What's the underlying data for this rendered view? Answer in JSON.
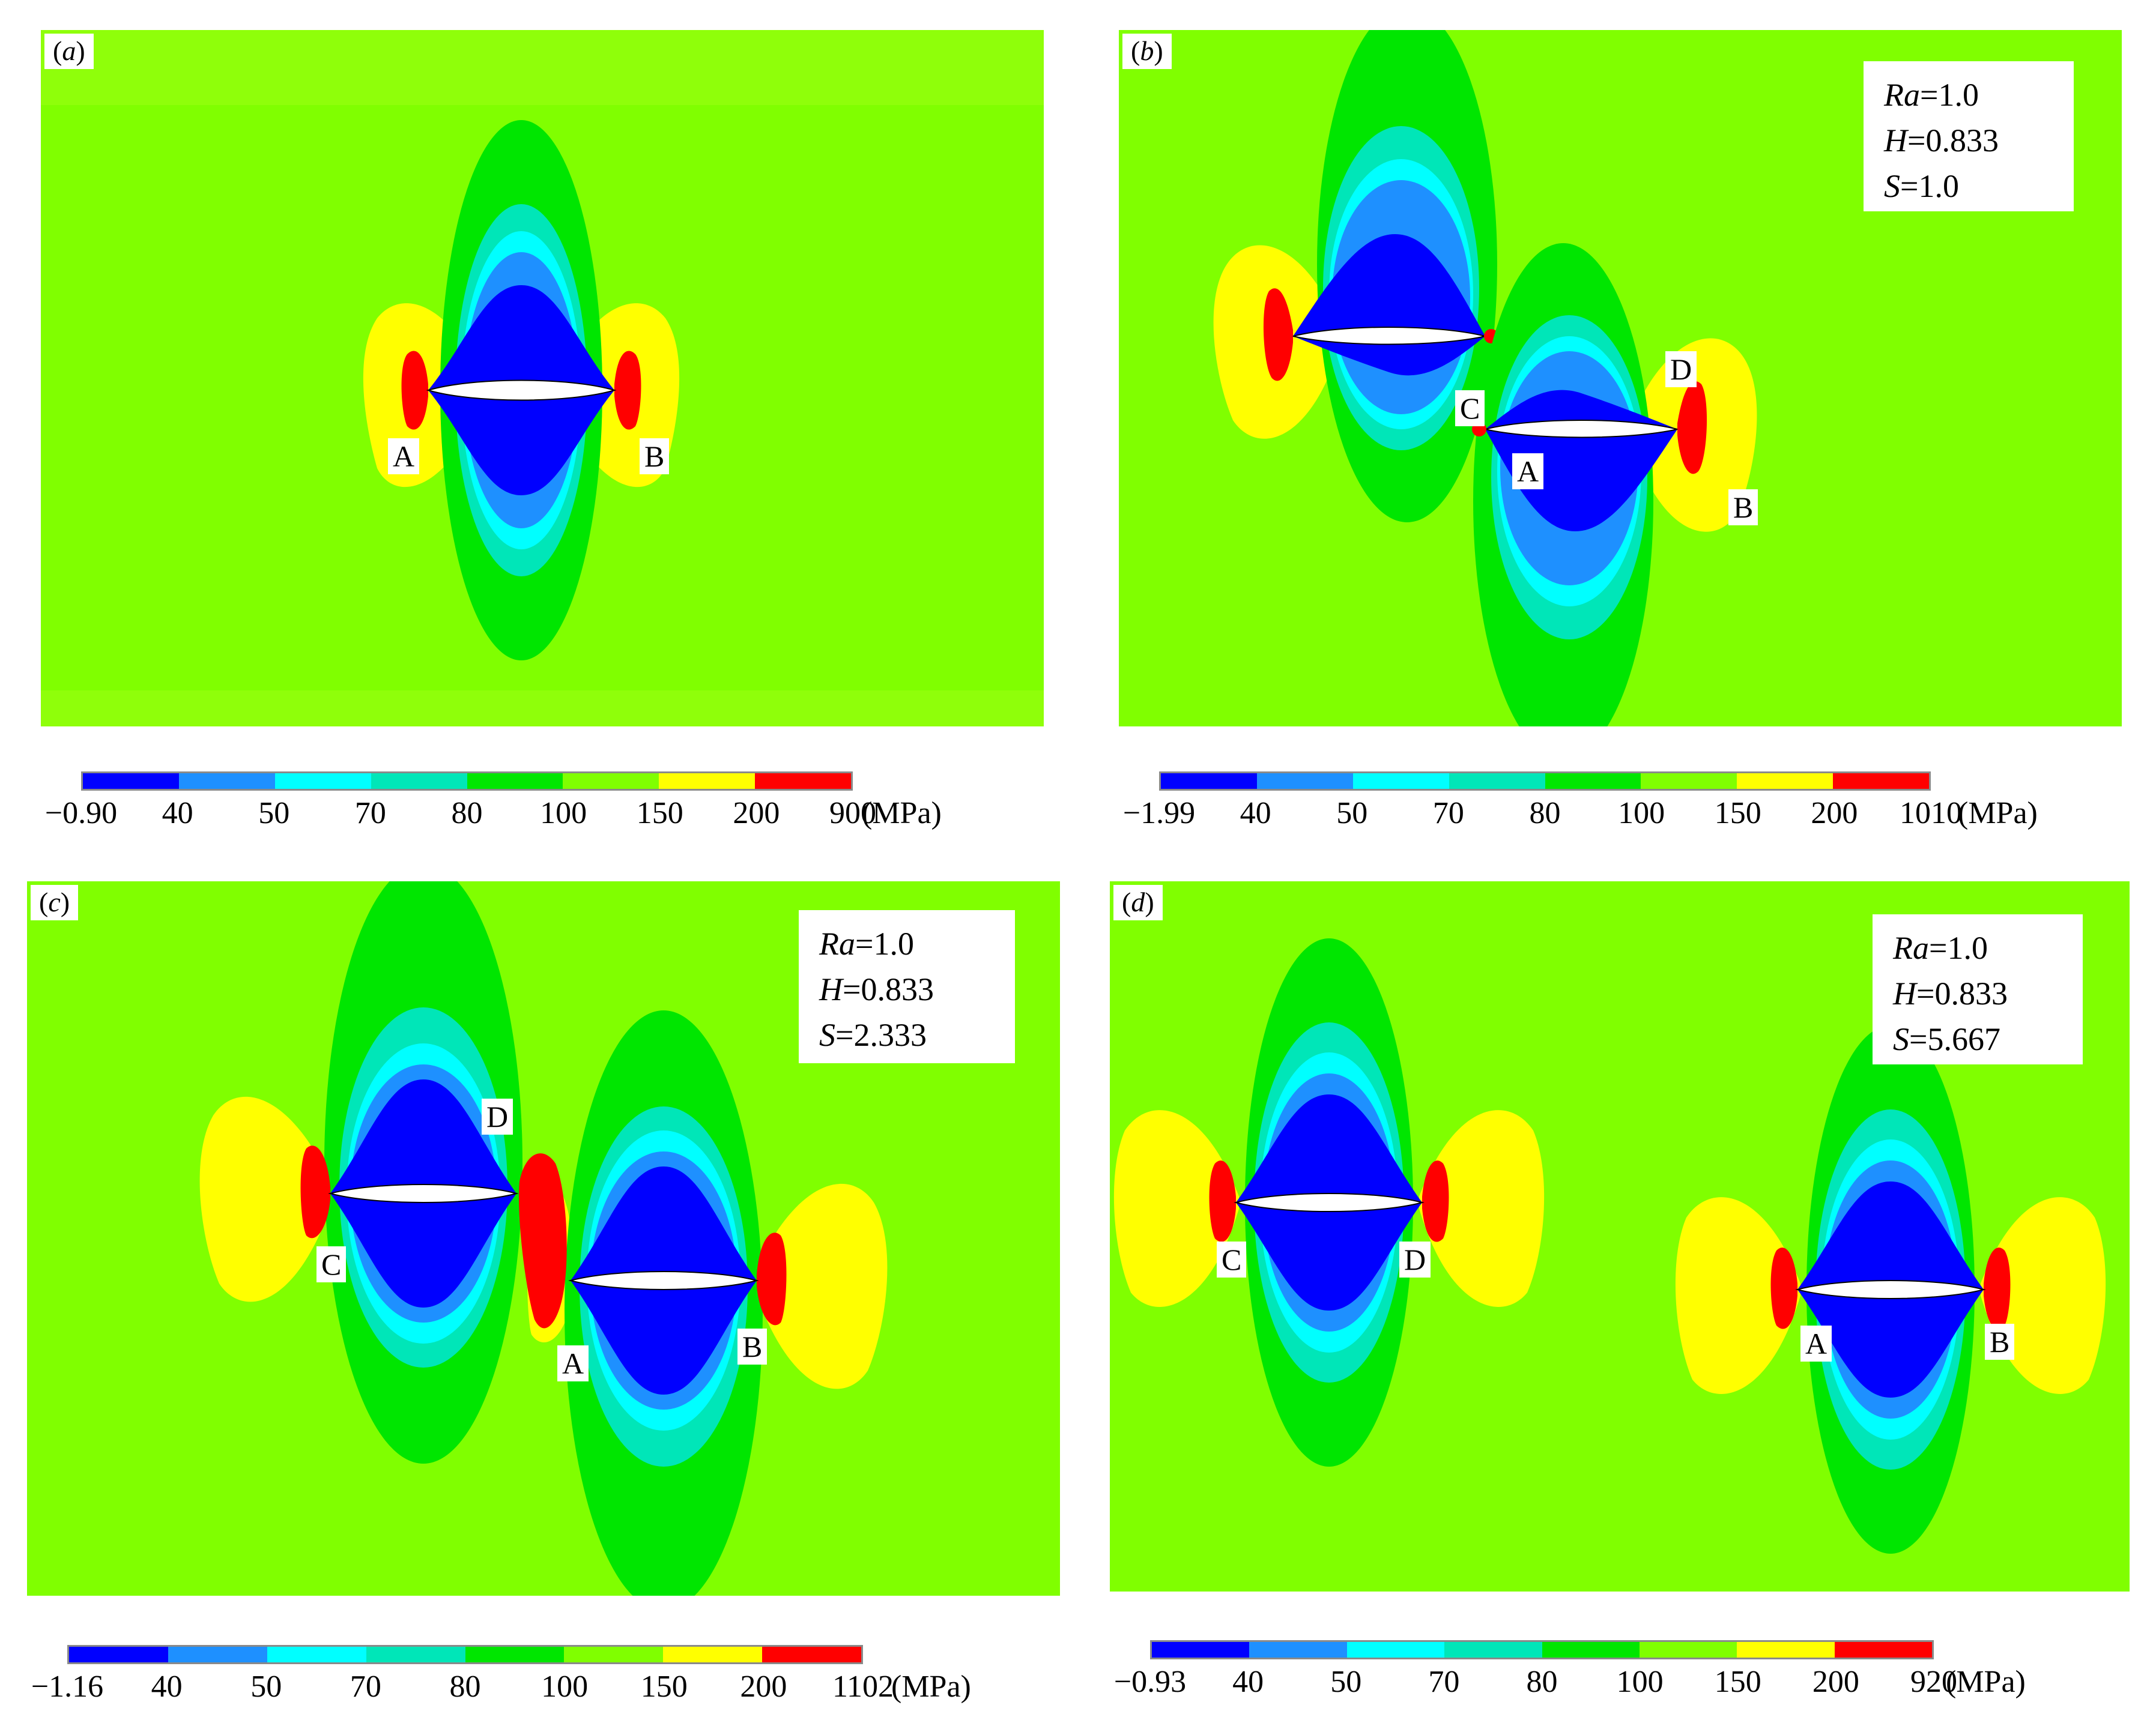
{
  "colors": {
    "background": "#80ff00",
    "band_light": "#a6ff1a",
    "bands": [
      "#0000ff",
      "#1e90ff",
      "#00ffff",
      "#00e6b8",
      "#00e600",
      "#80ff00",
      "#ffff00",
      "#ff0000"
    ],
    "airfoil": "#ffffff"
  },
  "legend_unit": "(MPa)",
  "panels": [
    {
      "id": "a",
      "tag": "a",
      "params": null,
      "points": [
        {
          "name": "A"
        },
        {
          "name": "B"
        }
      ],
      "colorbar_ticks": [
        "−0.90",
        "40",
        "50",
        "70",
        "80",
        "100",
        "150",
        "200",
        "900"
      ]
    },
    {
      "id": "b",
      "tag": "b",
      "params": {
        "ra_label": "Ra",
        "ra_value": "=1.0",
        "h_label": "H",
        "h_value": "=0.833",
        "s_label": "S",
        "s_value": "=1.0"
      },
      "points": [
        {
          "name": "A"
        },
        {
          "name": "B"
        },
        {
          "name": "C"
        },
        {
          "name": "D"
        }
      ],
      "colorbar_ticks": [
        "−1.99",
        "40",
        "50",
        "70",
        "80",
        "100",
        "150",
        "200",
        "1010"
      ]
    },
    {
      "id": "c",
      "tag": "c",
      "params": {
        "ra_label": "Ra",
        "ra_value": "=1.0",
        "h_label": "H",
        "h_value": "=0.833",
        "s_label": "S",
        "s_value": "=2.333"
      },
      "points": [
        {
          "name": "A"
        },
        {
          "name": "B"
        },
        {
          "name": "C"
        },
        {
          "name": "D"
        }
      ],
      "colorbar_ticks": [
        "−1.16",
        "40",
        "50",
        "70",
        "80",
        "100",
        "150",
        "200",
        "1102"
      ]
    },
    {
      "id": "d",
      "tag": "d",
      "params": {
        "ra_label": "Ra",
        "ra_value": "=1.0",
        "h_label": "H",
        "h_value": "=0.833",
        "s_label": "S",
        "s_value": "=5.667"
      },
      "points": [
        {
          "name": "A"
        },
        {
          "name": "B"
        },
        {
          "name": "C"
        },
        {
          "name": "D"
        }
      ],
      "colorbar_ticks": [
        "−0.93",
        "40",
        "50",
        "70",
        "80",
        "100",
        "150",
        "200",
        "920"
      ]
    }
  ],
  "chart_data": [
    {
      "type": "heatmap",
      "title": "",
      "panel": "a",
      "unit": "MPa",
      "colorbar_levels": [
        "−0.90",
        "40",
        "50",
        "70",
        "80",
        "100",
        "150",
        "200",
        "900"
      ],
      "annotations": [
        "A",
        "B"
      ]
    },
    {
      "type": "heatmap",
      "title": "",
      "panel": "b",
      "unit": "MPa",
      "params": {
        "Ra": 1.0,
        "H": 0.833,
        "S": 1.0
      },
      "colorbar_levels": [
        "−1.99",
        "40",
        "50",
        "70",
        "80",
        "100",
        "150",
        "200",
        "1010"
      ],
      "annotations": [
        "A",
        "B",
        "C",
        "D"
      ]
    },
    {
      "type": "heatmap",
      "title": "",
      "panel": "c",
      "unit": "MPa",
      "params": {
        "Ra": 1.0,
        "H": 0.833,
        "S": 2.333
      },
      "colorbar_levels": [
        "−1.16",
        "40",
        "50",
        "70",
        "80",
        "100",
        "150",
        "200",
        "1102"
      ],
      "annotations": [
        "A",
        "B",
        "C",
        "D"
      ]
    },
    {
      "type": "heatmap",
      "title": "",
      "panel": "d",
      "unit": "MPa",
      "params": {
        "Ra": 1.0,
        "H": 0.833,
        "S": 5.667
      },
      "colorbar_levels": [
        "−0.93",
        "40",
        "50",
        "70",
        "80",
        "100",
        "150",
        "200",
        "920"
      ],
      "annotations": [
        "A",
        "B",
        "C",
        "D"
      ]
    }
  ]
}
